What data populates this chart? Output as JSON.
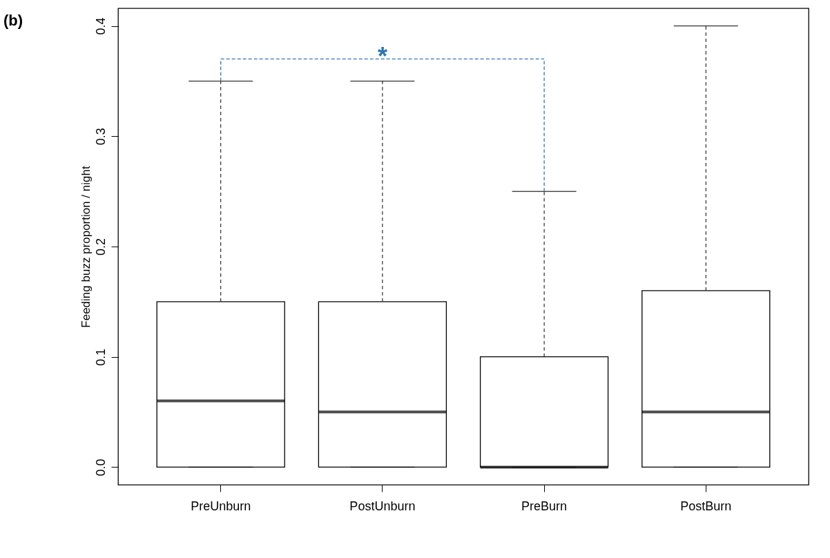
{
  "chart_data": {
    "type": "box",
    "title": "(b)",
    "ylabel": "Feeding buzz proportion / night",
    "categories": [
      "PreUnburn",
      "PostUnburn",
      "PreBurn",
      "PostBurn"
    ],
    "boxes": [
      {
        "low": 0,
        "q1": 0,
        "median": 0.06,
        "q3": 0.15,
        "high": 0.35
      },
      {
        "low": 0,
        "q1": 0,
        "median": 0.05,
        "q3": 0.15,
        "high": 0.35
      },
      {
        "low": 0,
        "q1": 0,
        "median": 0,
        "q3": 0.1,
        "high": 0.25
      },
      {
        "low": 0,
        "q1": 0,
        "median": 0.05,
        "q3": 0.16,
        "high": 0.4
      }
    ],
    "ylim": [
      -0.016,
      0.416
    ],
    "yticks": [
      {
        "value": 0,
        "label": "0.0"
      },
      0.1,
      0.2,
      0.3,
      0.4
    ],
    "grid": false,
    "annotations": [
      "*"
    ]
  }
}
